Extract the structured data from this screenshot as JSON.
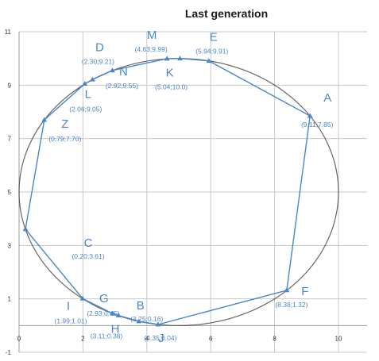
{
  "chart_data": {
    "type": "scatter",
    "title": "Last generation",
    "xlim": [
      0,
      10
    ],
    "ylim": [
      -1,
      11
    ],
    "x_ticks": [
      "0",
      "2",
      "4",
      "6",
      "8",
      "10"
    ],
    "x_tick_values": [
      0,
      2,
      4,
      6,
      8,
      10
    ],
    "y_ticks": [
      "-1",
      "1",
      "3",
      "5",
      "7",
      "9",
      "11"
    ],
    "y_tick_values": [
      -1,
      1,
      3,
      5,
      7,
      9,
      11
    ],
    "grid": true,
    "colors": {
      "path": "#4a86c8",
      "circle": "#333333",
      "grid": "#c8c8c8"
    },
    "circle": {
      "center": [
        5,
        5
      ],
      "radius": 5
    },
    "points": [
      {
        "label": "A",
        "coord": "(9.11;7.85)",
        "x": 9.11,
        "y": 7.85
      },
      {
        "label": "F",
        "coord": "(8.38;1.32)",
        "x": 8.38,
        "y": 1.32
      },
      {
        "label": "J",
        "coord": "(4.35;0.04)",
        "x": 4.35,
        "y": 0.04
      },
      {
        "label": "B",
        "coord": "(3.75;0.16)",
        "x": 3.75,
        "y": 0.16
      },
      {
        "label": "H",
        "coord": "(3.11;0.38)",
        "x": 3.11,
        "y": 0.38
      },
      {
        "label": "G",
        "coord": "(2.93;0.45)",
        "x": 2.93,
        "y": 0.45
      },
      {
        "label": "I",
        "coord": "(1.99;1.01)",
        "x": 1.99,
        "y": 1.01
      },
      {
        "label": "C",
        "coord": "(0.20;3.61)",
        "x": 0.2,
        "y": 3.61
      },
      {
        "label": "Z",
        "coord": "(0.79;7.70)",
        "x": 0.79,
        "y": 7.7
      },
      {
        "label": "L",
        "coord": "(2.06;9.05)",
        "x": 2.06,
        "y": 9.05
      },
      {
        "label": "D",
        "coord": "(2.30;9.21)",
        "x": 2.3,
        "y": 9.21
      },
      {
        "label": "N",
        "coord": "(2.92;9.55)",
        "x": 2.92,
        "y": 9.55
      },
      {
        "label": "M",
        "coord": "(4.63;9.99)",
        "x": 4.63,
        "y": 9.99
      },
      {
        "label": "K",
        "coord": "(5.04;10.0)",
        "x": 5.04,
        "y": 10.0
      },
      {
        "label": "E",
        "coord": "(5.94;9.91)",
        "x": 5.94,
        "y": 9.91
      }
    ]
  }
}
